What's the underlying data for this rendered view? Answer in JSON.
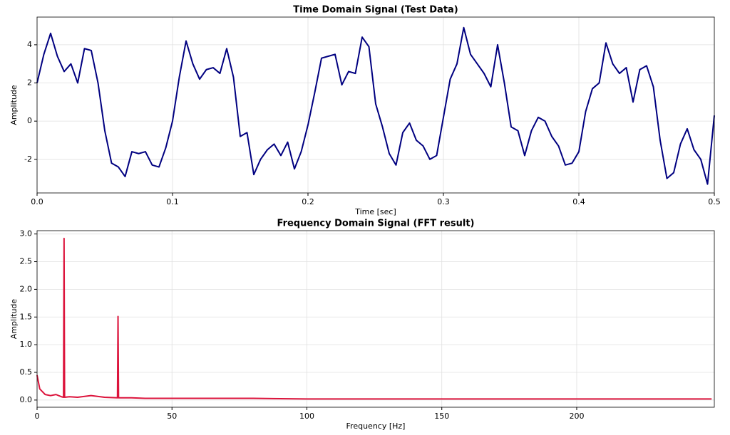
{
  "chart_data": [
    {
      "type": "line",
      "title": "Time Domain Signal (Test Data)",
      "x_label": "Time [sec]",
      "y_label": "Amplitude",
      "color": "#000080",
      "grid": true,
      "xlim": [
        0,
        0.5
      ],
      "ylim": [
        -3.76,
        5.45
      ],
      "xticks": [
        {
          "value": 0,
          "label": "0.0"
        },
        0.1,
        0.2,
        0.3,
        0.4,
        0.5
      ],
      "yticks": [
        -2,
        0,
        2,
        4
      ],
      "x": [
        0,
        0.005,
        0.01,
        0.015,
        0.02,
        0.025,
        0.03,
        0.035,
        0.04,
        0.045,
        0.05,
        0.055,
        0.06,
        0.065,
        0.07,
        0.075,
        0.08,
        0.085,
        0.09,
        0.095,
        0.1,
        0.105,
        0.11,
        0.115,
        0.12,
        0.125,
        0.13,
        0.135,
        0.14,
        0.145,
        0.15,
        0.155,
        0.16,
        0.165,
        0.17,
        0.175,
        0.18,
        0.185,
        0.19,
        0.195,
        0.2,
        0.205,
        0.21,
        0.215,
        0.22,
        0.225,
        0.23,
        0.235,
        0.24,
        0.245,
        0.25,
        0.255,
        0.26,
        0.265,
        0.27,
        0.275,
        0.28,
        0.285,
        0.29,
        0.295,
        0.3,
        0.305,
        0.31,
        0.315,
        0.32,
        0.325,
        0.33,
        0.335,
        0.34,
        0.345,
        0.35,
        0.355,
        0.36,
        0.365,
        0.37,
        0.375,
        0.38,
        0.385,
        0.39,
        0.395,
        0.4,
        0.405,
        0.41,
        0.415,
        0.42,
        0.425,
        0.43,
        0.435,
        0.44,
        0.445,
        0.45,
        0.455,
        0.46,
        0.465,
        0.47,
        0.475,
        0.48,
        0.485,
        0.49,
        0.495,
        0.5
      ],
      "values": [
        2.0,
        3.5,
        4.6,
        3.4,
        2.6,
        3.0,
        2.0,
        3.8,
        3.7,
        2.0,
        -0.5,
        -2.2,
        -2.4,
        -2.9,
        -1.6,
        -1.7,
        -1.6,
        -2.3,
        -2.4,
        -1.4,
        0.0,
        2.3,
        4.2,
        3.0,
        2.2,
        2.7,
        2.8,
        2.5,
        3.8,
        2.3,
        -0.8,
        -0.6,
        -2.8,
        -2.0,
        -1.5,
        -1.2,
        -1.8,
        -1.1,
        -2.5,
        -1.6,
        -0.2,
        1.5,
        3.3,
        3.4,
        3.5,
        1.9,
        2.6,
        2.5,
        4.4,
        3.9,
        0.9,
        -0.3,
        -1.7,
        -2.3,
        -0.6,
        -0.1,
        -1.0,
        -1.3,
        -2.0,
        -1.8,
        0.2,
        2.2,
        3.0,
        4.9,
        3.5,
        3.0,
        2.5,
        1.8,
        4.0,
        2.0,
        -0.3,
        -0.5,
        -1.8,
        -0.5,
        0.2,
        0.0,
        -0.8,
        -1.3,
        -2.3,
        -2.2,
        -1.6,
        0.5,
        1.7,
        2.0,
        4.1,
        3.0,
        2.5,
        2.8,
        1.0,
        2.7,
        2.9,
        1.8,
        -1.0,
        -3.0,
        -2.7,
        -1.2,
        -0.4,
        -1.5,
        -2.0,
        -3.3,
        0.3
      ]
    },
    {
      "type": "line",
      "title": "Frequency Domain Signal (FFT result)",
      "x_label": "Frequency [Hz]",
      "y_label": "Amplitude",
      "color": "#dc143c",
      "grid": true,
      "xlim": [
        0,
        251
      ],
      "ylim": [
        -0.13,
        3.06
      ],
      "xticks": [
        0,
        50,
        100,
        150,
        200
      ],
      "yticks": [
        {
          "value": 0,
          "label": "0.0"
        },
        0.5,
        {
          "value": 1,
          "label": "1.0"
        },
        1.5,
        {
          "value": 2,
          "label": "2.0"
        },
        2.5,
        {
          "value": 3,
          "label": "3.0"
        }
      ],
      "x": [
        0,
        1,
        2,
        3,
        5,
        7,
        9,
        9.8,
        10,
        10.2,
        12,
        15,
        20,
        25,
        29.8,
        30,
        30.2,
        35,
        40,
        60,
        80,
        100,
        150,
        200,
        250
      ],
      "values": [
        0.45,
        0.2,
        0.15,
        0.1,
        0.08,
        0.1,
        0.06,
        0.05,
        2.92,
        0.05,
        0.06,
        0.05,
        0.08,
        0.05,
        0.04,
        1.51,
        0.04,
        0.04,
        0.03,
        0.03,
        0.03,
        0.02,
        0.02,
        0.02,
        0.02
      ]
    }
  ]
}
